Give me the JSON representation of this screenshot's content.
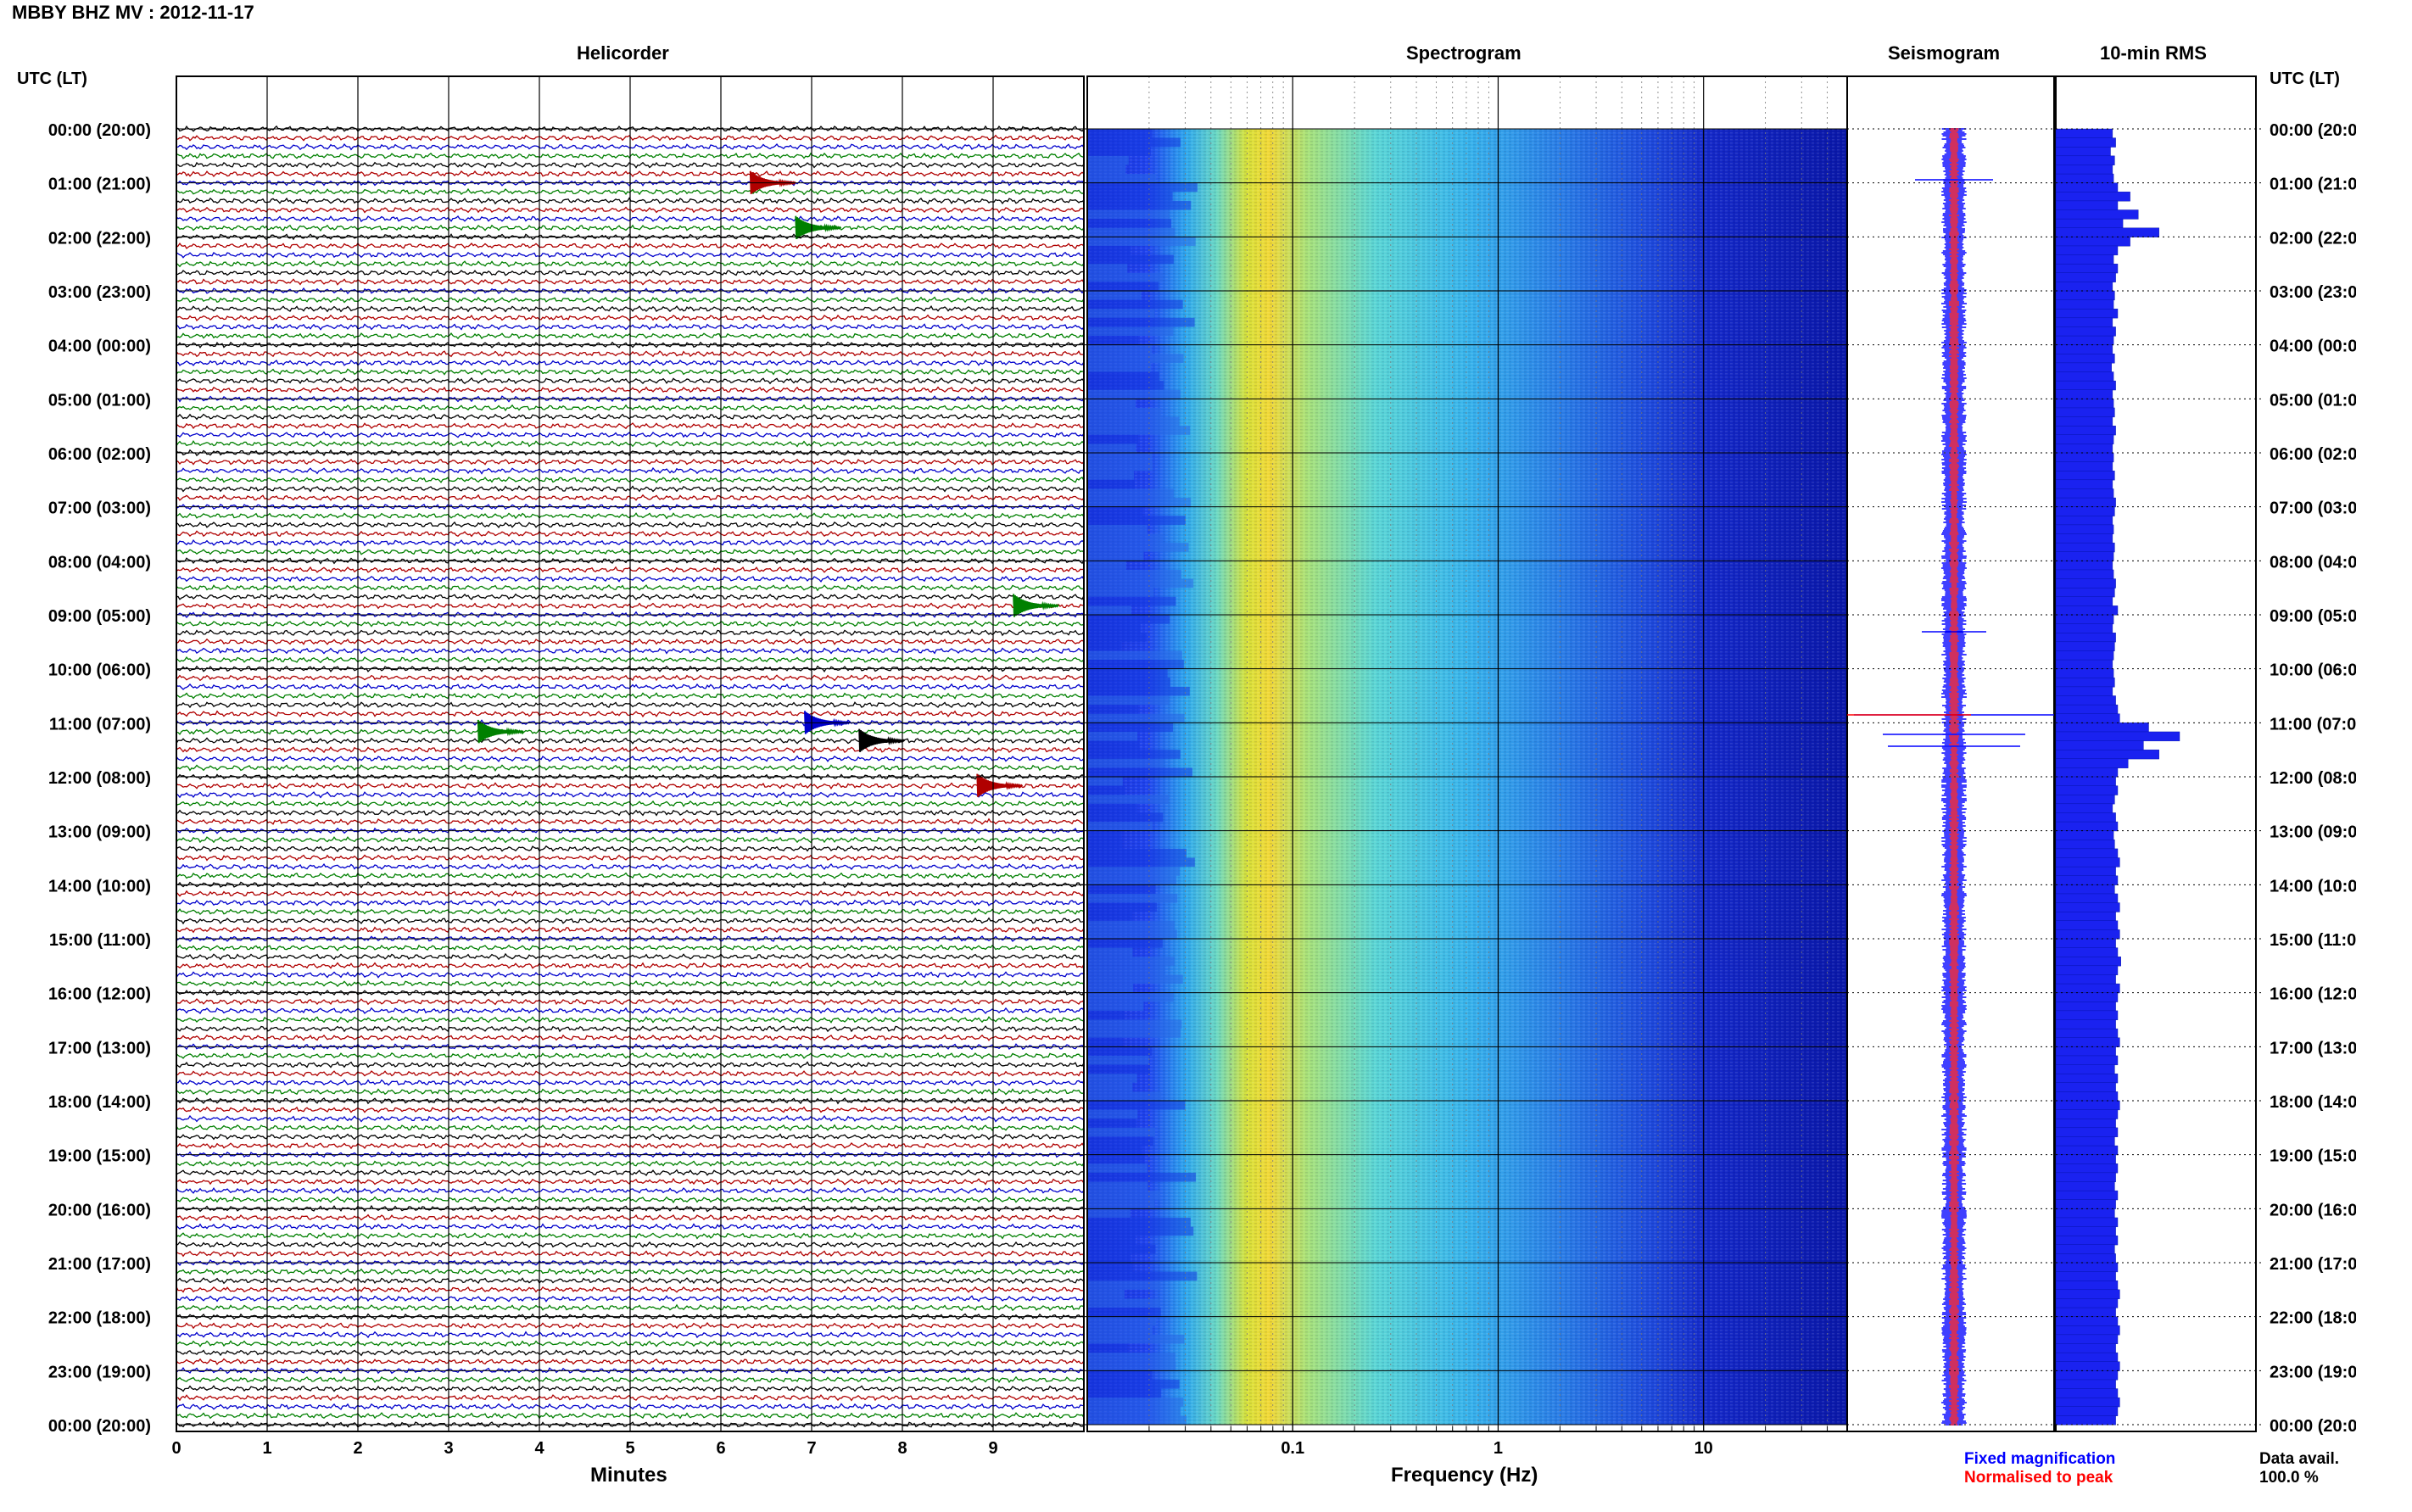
{
  "header": {
    "title": "MBBY BHZ MV : 2012-11-17"
  },
  "panels": {
    "helicorder": "Helicorder",
    "spectrogram": "Spectrogram",
    "seismogram": "Seismogram",
    "rms": "10-min RMS"
  },
  "axes": {
    "left_label": "UTC (LT)",
    "right_label": "UTC (LT)",
    "helicorder_xlabel": "Minutes",
    "spectrogram_xlabel": "Frequency (Hz)"
  },
  "time_labels": [
    "00:00 (20:00)",
    "01:00 (21:00)",
    "02:00 (22:00)",
    "03:00 (23:00)",
    "04:00 (00:00)",
    "05:00 (01:00)",
    "06:00 (02:00)",
    "07:00 (03:00)",
    "08:00 (04:00)",
    "09:00 (05:00)",
    "10:00 (06:00)",
    "11:00 (07:00)",
    "12:00 (08:00)",
    "13:00 (09:00)",
    "14:00 (10:00)",
    "15:00 (11:00)",
    "16:00 (12:00)",
    "17:00 (13:00)",
    "18:00 (14:00)",
    "19:00 (15:00)",
    "20:00 (16:00)",
    "21:00 (17:00)",
    "22:00 (18:00)",
    "23:00 (19:00)",
    "00:00 (20:00)"
  ],
  "minute_ticks": [
    "0",
    "1",
    "2",
    "3",
    "4",
    "5",
    "6",
    "7",
    "8",
    "9"
  ],
  "freq_ticks": [
    "0.1",
    "1",
    "10"
  ],
  "legend": {
    "fixed": "Fixed magnification",
    "normalised": "Normalised to peak",
    "fixed_color": "#0000ff",
    "normalised_color": "#ff0000"
  },
  "data_avail": {
    "label": "Data avail.",
    "value": "100.0 %"
  },
  "chart_data": [
    {
      "type": "line",
      "title": "Helicorder",
      "xlabel": "Minutes",
      "xlim": [
        0,
        10
      ],
      "rows": 144,
      "row_minutes": 10,
      "trace_colors": [
        "#000000",
        "#b00000",
        "#0000cc",
        "#008000"
      ],
      "events": [
        {
          "row": 6,
          "minute": 6.4,
          "color": "#b00000"
        },
        {
          "row": 11,
          "minute": 6.9,
          "color": "#008000"
        },
        {
          "row": 53,
          "minute": 9.3,
          "color": "#008000"
        },
        {
          "row": 67,
          "minute": 3.4,
          "color": "#008000"
        },
        {
          "row": 66,
          "minute": 7.0,
          "color": "#0000cc"
        },
        {
          "row": 68,
          "minute": 7.6,
          "color": "#000000"
        },
        {
          "row": 73,
          "minute": 8.9,
          "color": "#b00000"
        }
      ]
    },
    {
      "type": "heatmap",
      "title": "Spectrogram",
      "xlabel": "Frequency (Hz)",
      "xscale": "log",
      "xlim": [
        0.01,
        50
      ],
      "peak_band_hz": [
        0.15,
        0.25
      ]
    },
    {
      "type": "line",
      "title": "Seismogram",
      "series": [
        {
          "name": "Fixed magnification",
          "color": "#0000ff"
        },
        {
          "name": "Normalised to peak",
          "color": "#ff0000"
        }
      ]
    },
    {
      "type": "bar",
      "title": "10-min RMS",
      "orientation": "horizontal",
      "values": [
        0.55,
        0.58,
        0.53,
        0.57,
        0.55,
        0.56,
        0.6,
        0.72,
        0.6,
        0.8,
        0.65,
        1.0,
        0.72,
        0.6,
        0.56,
        0.6,
        0.58,
        0.55,
        0.57,
        0.56,
        0.6,
        0.55,
        0.58,
        0.56,
        0.55,
        0.57,
        0.54,
        0.56,
        0.58,
        0.55,
        0.56,
        0.57,
        0.55,
        0.58,
        0.56,
        0.55,
        0.56,
        0.55,
        0.57,
        0.55,
        0.56,
        0.58,
        0.57,
        0.55,
        0.56,
        0.55,
        0.57,
        0.56,
        0.55,
        0.56,
        0.58,
        0.57,
        0.55,
        0.6,
        0.56,
        0.55,
        0.58,
        0.57,
        0.56,
        0.55,
        0.56,
        0.57,
        0.55,
        0.58,
        0.6,
        0.62,
        0.9,
        1.2,
        0.85,
        1.0,
        0.7,
        0.6,
        0.58,
        0.6,
        0.57,
        0.55,
        0.58,
        0.6,
        0.56,
        0.57,
        0.6,
        0.62,
        0.58,
        0.6,
        0.57,
        0.6,
        0.62,
        0.58,
        0.6,
        0.62,
        0.58,
        0.6,
        0.63,
        0.6,
        0.58,
        0.62,
        0.6,
        0.58,
        0.6,
        0.58,
        0.6,
        0.62,
        0.58,
        0.6,
        0.57,
        0.6,
        0.58,
        0.6,
        0.62,
        0.6,
        0.58,
        0.6,
        0.57,
        0.6,
        0.58,
        0.6,
        0.58,
        0.57,
        0.6,
        0.58,
        0.57,
        0.6,
        0.58,
        0.6,
        0.57,
        0.58,
        0.6,
        0.58,
        0.6,
        0.62,
        0.6,
        0.58,
        0.6,
        0.62,
        0.6,
        0.58,
        0.6,
        0.62,
        0.6,
        0.58,
        0.6,
        0.62,
        0.6,
        0.58
      ]
    }
  ]
}
